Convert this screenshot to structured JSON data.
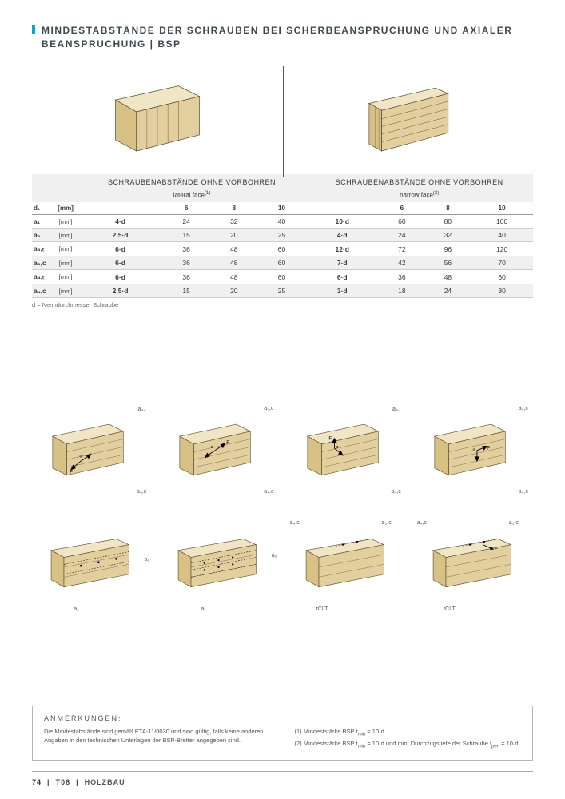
{
  "title": "MINDESTABSTÄNDE DER SCHRAUBEN BEI SCHERBEANSPRUCHUNG UND AXIALER BEANSPRUCHUNG | BSP",
  "panels": {
    "wood_fill": "#e3cf9e",
    "wood_stroke": "#5a4a30",
    "wood_top": "#f0e5c4"
  },
  "table": {
    "group_hdr": "SCHRAUBENABSTÄNDE OHNE VORBOHREN",
    "left_sub": "lateral face",
    "left_sup": "(1)",
    "right_sub": "narrow face",
    "right_sup": "(2)",
    "d1_label": "d₁",
    "d1_unit": "[mm]",
    "d_cols_left": [
      "6",
      "8",
      "10"
    ],
    "d_cols_right": [
      "6",
      "8",
      "10"
    ],
    "rows": [
      {
        "label": "a₁",
        "unit": "[mm]",
        "formula_l": "4·d",
        "vals_l": [
          "24",
          "32",
          "40"
        ],
        "formula_r": "10·d",
        "vals_r": [
          "60",
          "80",
          "100"
        ],
        "shade": false
      },
      {
        "label": "a₂",
        "unit": "[mm]",
        "formula_l": "2,5·d",
        "vals_l": [
          "15",
          "20",
          "25"
        ],
        "formula_r": "4·d",
        "vals_r": [
          "24",
          "32",
          "40"
        ],
        "shade": true
      },
      {
        "label": "a₃,ₜ",
        "unit": "[mm]",
        "formula_l": "6·d",
        "vals_l": [
          "36",
          "48",
          "60"
        ],
        "formula_r": "12·d",
        "vals_r": [
          "72",
          "96",
          "120"
        ],
        "shade": false
      },
      {
        "label": "a₃,c",
        "unit": "[mm]",
        "formula_l": "6·d",
        "vals_l": [
          "36",
          "48",
          "60"
        ],
        "formula_r": "7·d",
        "vals_r": [
          "42",
          "56",
          "70"
        ],
        "shade": true
      },
      {
        "label": "a₄,ₜ",
        "unit": "[mm]",
        "formula_l": "6·d",
        "vals_l": [
          "36",
          "48",
          "60"
        ],
        "formula_r": "6·d",
        "vals_r": [
          "36",
          "48",
          "60"
        ],
        "shade": false
      },
      {
        "label": "a₄,c",
        "unit": "[mm]",
        "formula_l": "2,5·d",
        "vals_l": [
          "15",
          "20",
          "25"
        ],
        "formula_r": "3·d",
        "vals_r": [
          "18",
          "24",
          "30"
        ],
        "shade": true
      }
    ],
    "footnote": "d = Nenndurchmesser Schraube"
  },
  "diagram_labels": {
    "r1": [
      "a₃,ₜ",
      "a₃,c",
      "a₃,ₜ",
      "a₃,c"
    ],
    "r1b": [
      "a₄,c",
      "a₄,c",
      "a₄,c",
      "a₄,c"
    ],
    "force": "F",
    "angle": "α",
    "r2_left": [
      "a₁",
      "a₂",
      "a₁",
      "a₂"
    ],
    "r2_right_a": [
      "a₄,c",
      "a₄,c"
    ],
    "r2_right_b": [
      "a₃,c",
      "a₃,c"
    ],
    "tCLT": "tCLT"
  },
  "notes": {
    "heading": "ANMERKUNGEN:",
    "left": "Die Mindestabstände sind gemäß ETA-11/0030 und sind gültig, falls keine anderen Angaben in den technischen Unterlagen der BSP-Bretter angegeben sind.",
    "right1_pre": "(1) Mindeststärke BSP t",
    "right1_sub": "min",
    "right1_post": " = 10·d",
    "right2_pre": "(2) Mindeststärke BSP t",
    "right2_sub": "min",
    "right2_mid": " = 10·d und min. Durchzugstiefe der Schraube t",
    "right2_sub2": "pen",
    "right2_post": " = 10·d"
  },
  "footer": {
    "page": "74",
    "sep": "|",
    "brand": "T08",
    "section": "HOLZBAU"
  },
  "colors": {
    "accent": "#06a7c7",
    "shade": "#f0f0f0"
  }
}
